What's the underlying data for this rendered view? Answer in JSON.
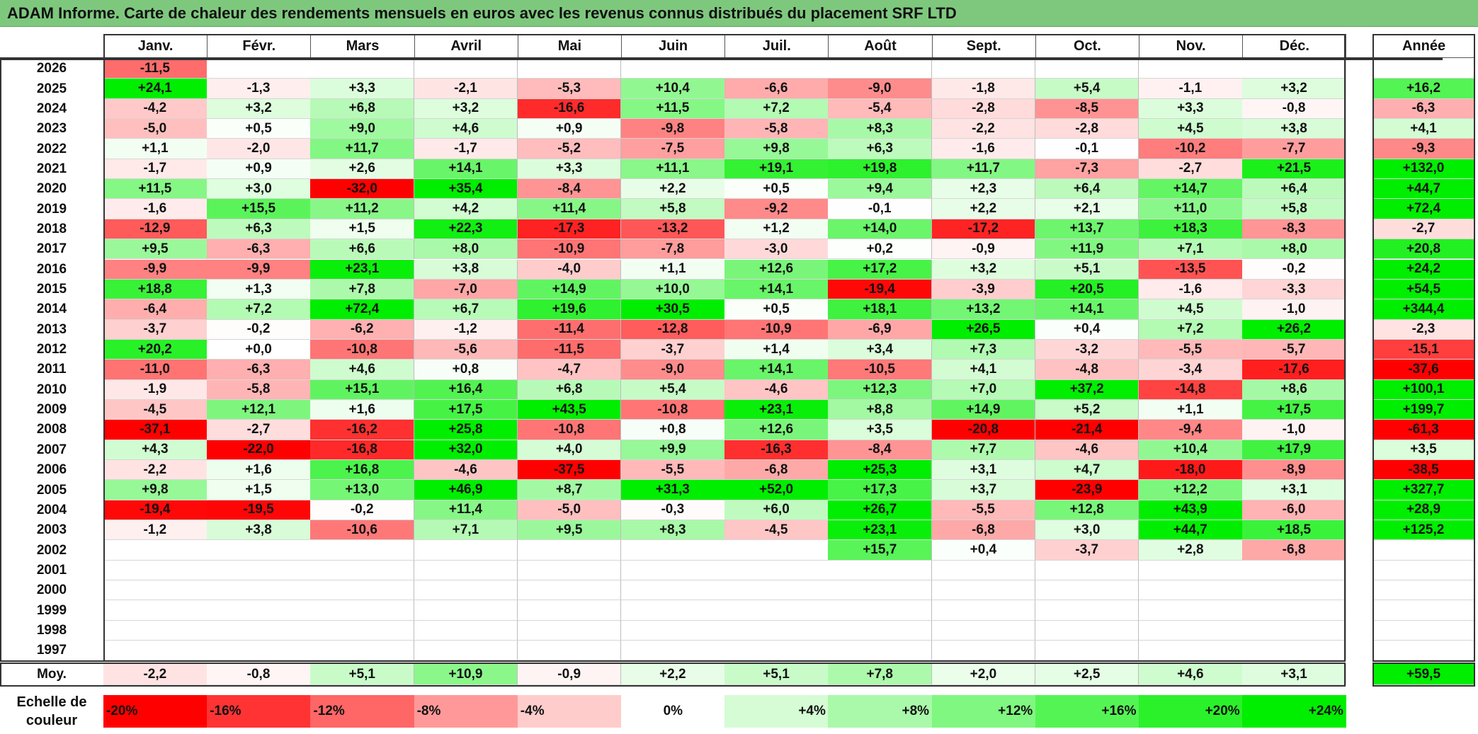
{
  "title": "ADAM Informe. Carte de chaleur des rendements mensuels en euros avec les revenus connus distribués du placement SRF LTD",
  "chart_data": {
    "type": "heatmap",
    "months": [
      "Janv.",
      "Févr.",
      "Mars",
      "Avril",
      "Mai",
      "Juin",
      "Juil.",
      "Août",
      "Sept.",
      "Oct.",
      "Nov.",
      "Déc."
    ],
    "year_header": "Année",
    "rows": [
      {
        "year": "2026",
        "values": [
          "-11,5",
          "",
          "",
          "",
          "",
          "",
          "",
          "",
          "",
          "",
          "",
          ""
        ],
        "annual": ""
      },
      {
        "year": "2025",
        "values": [
          "+24,1",
          "-1,3",
          "+3,3",
          "-2,1",
          "-5,3",
          "+10,4",
          "-6,6",
          "-9,0",
          "-1,8",
          "+5,4",
          "-1,1",
          "+3,2"
        ],
        "annual": "+16,2"
      },
      {
        "year": "2024",
        "values": [
          "-4,2",
          "+3,2",
          "+6,8",
          "+3,2",
          "-16,6",
          "+11,5",
          "+7,2",
          "-5,4",
          "-2,8",
          "-8,5",
          "+3,3",
          "-0,8"
        ],
        "annual": "-6,3"
      },
      {
        "year": "2023",
        "values": [
          "-5,0",
          "+0,5",
          "+9,0",
          "+4,6",
          "+0,9",
          "-9,8",
          "-5,8",
          "+8,3",
          "-2,2",
          "-2,8",
          "+4,5",
          "+3,8"
        ],
        "annual": "+4,1"
      },
      {
        "year": "2022",
        "values": [
          "+1,1",
          "-2,0",
          "+11,7",
          "-1,7",
          "-5,2",
          "-7,5",
          "+9,8",
          "+6,3",
          "-1,6",
          "-0,1",
          "-10,2",
          "-7,7"
        ],
        "annual": "-9,3"
      },
      {
        "year": "2021",
        "values": [
          "-1,7",
          "+0,9",
          "+2,6",
          "+14,1",
          "+3,3",
          "+11,1",
          "+19,1",
          "+19,8",
          "+11,7",
          "-7,3",
          "-2,7",
          "+21,5"
        ],
        "annual": "+132,0"
      },
      {
        "year": "2020",
        "values": [
          "+11,5",
          "+3,0",
          "-32,0",
          "+35,4",
          "-8,4",
          "+2,2",
          "+0,5",
          "+9,4",
          "+2,3",
          "+6,4",
          "+14,7",
          "+6,4"
        ],
        "annual": "+44,7"
      },
      {
        "year": "2019",
        "values": [
          "-1,6",
          "+15,5",
          "+11,2",
          "+4,2",
          "+11,4",
          "+5,8",
          "-9,2",
          "-0,1",
          "+2,2",
          "+2,1",
          "+11,0",
          "+5,8"
        ],
        "annual": "+72,4"
      },
      {
        "year": "2018",
        "values": [
          "-12,9",
          "+6,3",
          "+1,5",
          "+22,3",
          "-17,3",
          "-13,2",
          "+1,2",
          "+14,0",
          "-17,2",
          "+13,7",
          "+18,3",
          "-8,3"
        ],
        "annual": "-2,7"
      },
      {
        "year": "2017",
        "values": [
          "+9,5",
          "-6,3",
          "+6,6",
          "+8,0",
          "-10,9",
          "-7,8",
          "-3,0",
          "+0,2",
          "-0,9",
          "+11,9",
          "+7,1",
          "+8,0"
        ],
        "annual": "+20,8"
      },
      {
        "year": "2016",
        "values": [
          "-9,9",
          "-9,9",
          "+23,1",
          "+3,8",
          "-4,0",
          "+1,1",
          "+12,6",
          "+17,2",
          "+3,2",
          "+5,1",
          "-13,5",
          "-0,2"
        ],
        "annual": "+24,2"
      },
      {
        "year": "2015",
        "values": [
          "+18,8",
          "+1,3",
          "+7,8",
          "-7,0",
          "+14,9",
          "+10,0",
          "+14,1",
          "-19,4",
          "-3,9",
          "+20,5",
          "-1,6",
          "-3,3"
        ],
        "annual": "+54,5"
      },
      {
        "year": "2014",
        "values": [
          "-6,4",
          "+7,2",
          "+72,4",
          "+6,7",
          "+19,6",
          "+30,5",
          "+0,5",
          "+18,1",
          "+13,2",
          "+14,1",
          "+4,5",
          "-1,0"
        ],
        "annual": "+344,4"
      },
      {
        "year": "2013",
        "values": [
          "-3,7",
          "-0,2",
          "-6,2",
          "-1,2",
          "-11,4",
          "-12,8",
          "-10,9",
          "-6,9",
          "+26,5",
          "+0,4",
          "+7,2",
          "+26,2"
        ],
        "annual": "-2,3"
      },
      {
        "year": "2012",
        "values": [
          "+20,2",
          "+0,0",
          "-10,8",
          "-5,6",
          "-11,5",
          "-3,7",
          "+1,4",
          "+3,4",
          "+7,3",
          "-3,2",
          "-5,5",
          "-5,7"
        ],
        "annual": "-15,1"
      },
      {
        "year": "2011",
        "values": [
          "-11,0",
          "-6,3",
          "+4,6",
          "+0,8",
          "-4,7",
          "-9,0",
          "+14,1",
          "-10,5",
          "+4,1",
          "-4,8",
          "-3,4",
          "-17,6"
        ],
        "annual": "-37,6"
      },
      {
        "year": "2010",
        "values": [
          "-1,9",
          "-5,8",
          "+15,1",
          "+16,4",
          "+6,8",
          "+5,4",
          "-4,6",
          "+12,3",
          "+7,0",
          "+37,2",
          "-14,8",
          "+8,6"
        ],
        "annual": "+100,1"
      },
      {
        "year": "2009",
        "values": [
          "-4,5",
          "+12,1",
          "+1,6",
          "+17,5",
          "+43,5",
          "-10,8",
          "+23,1",
          "+8,8",
          "+14,9",
          "+5,2",
          "+1,1",
          "+17,5"
        ],
        "annual": "+199,7"
      },
      {
        "year": "2008",
        "values": [
          "-37,1",
          "-2,7",
          "-16,2",
          "+25,8",
          "-10,8",
          "+0,8",
          "+12,6",
          "+3,5",
          "-20,8",
          "-21,4",
          "-9,4",
          "-1,0"
        ],
        "annual": "-61,3"
      },
      {
        "year": "2007",
        "values": [
          "+4,3",
          "-22,0",
          "-16,8",
          "+32,0",
          "+4,0",
          "+9,9",
          "-16,3",
          "-8,4",
          "+7,7",
          "-4,6",
          "+10,4",
          "+17,9"
        ],
        "annual": "+3,5"
      },
      {
        "year": "2006",
        "values": [
          "-2,2",
          "+1,6",
          "+16,8",
          "-4,6",
          "-37,5",
          "-5,5",
          "-6,8",
          "+25,3",
          "+3,1",
          "+4,7",
          "-18,0",
          "-8,9"
        ],
        "annual": "-38,5"
      },
      {
        "year": "2005",
        "values": [
          "+9,8",
          "+1,5",
          "+13,0",
          "+46,9",
          "+8,7",
          "+31,3",
          "+52,0",
          "+17,3",
          "+3,7",
          "-23,9",
          "+12,2",
          "+3,1"
        ],
        "annual": "+327,7"
      },
      {
        "year": "2004",
        "values": [
          "-19,4",
          "-19,5",
          "-0,2",
          "+11,4",
          "-5,0",
          "-0,3",
          "+6,0",
          "+26,7",
          "-5,5",
          "+12,8",
          "+43,9",
          "-6,0"
        ],
        "annual": "+28,9"
      },
      {
        "year": "2003",
        "values": [
          "-1,2",
          "+3,8",
          "-10,6",
          "+7,1",
          "+9,5",
          "+8,3",
          "-4,5",
          "+23,1",
          "-6,8",
          "+3,0",
          "+44,7",
          "+18,5"
        ],
        "annual": "+125,2"
      },
      {
        "year": "2002",
        "values": [
          "",
          "",
          "",
          "",
          "",
          "",
          "",
          "+15,7",
          "+0,4",
          "-3,7",
          "+2,8",
          "-6,8"
        ],
        "annual": ""
      },
      {
        "year": "2001",
        "values": [
          "",
          "",
          "",
          "",
          "",
          "",
          "",
          "",
          "",
          "",
          "",
          ""
        ],
        "annual": ""
      },
      {
        "year": "2000",
        "values": [
          "",
          "",
          "",
          "",
          "",
          "",
          "",
          "",
          "",
          "",
          "",
          ""
        ],
        "annual": ""
      },
      {
        "year": "1999",
        "values": [
          "",
          "",
          "",
          "",
          "",
          "",
          "",
          "",
          "",
          "",
          "",
          ""
        ],
        "annual": ""
      },
      {
        "year": "1998",
        "values": [
          "",
          "",
          "",
          "",
          "",
          "",
          "",
          "",
          "",
          "",
          "",
          ""
        ],
        "annual": ""
      },
      {
        "year": "1997",
        "values": [
          "",
          "",
          "",
          "",
          "",
          "",
          "",
          "",
          "",
          "",
          "",
          ""
        ],
        "annual": ""
      }
    ],
    "average": {
      "label": "Moy.",
      "values": [
        "-2,2",
        "-0,8",
        "+5,1",
        "+10,9",
        "-0,9",
        "+2,2",
        "+5,1",
        "+7,8",
        "+2,0",
        "+2,5",
        "+4,6",
        "+3,1"
      ],
      "annual": "+59,5"
    },
    "color_scale": {
      "label": "Echelle de couleur",
      "stops": [
        "-20%",
        "-16%",
        "-12%",
        "-8%",
        "-4%",
        "0%",
        "+4%",
        "+8%",
        "+12%",
        "+16%",
        "+20%",
        "+24%"
      ]
    },
    "colors": {
      "negative": "#ff0000",
      "neutral": "#ffffff",
      "positive": "#00ee00",
      "title_bar": "#7ec87e"
    }
  }
}
